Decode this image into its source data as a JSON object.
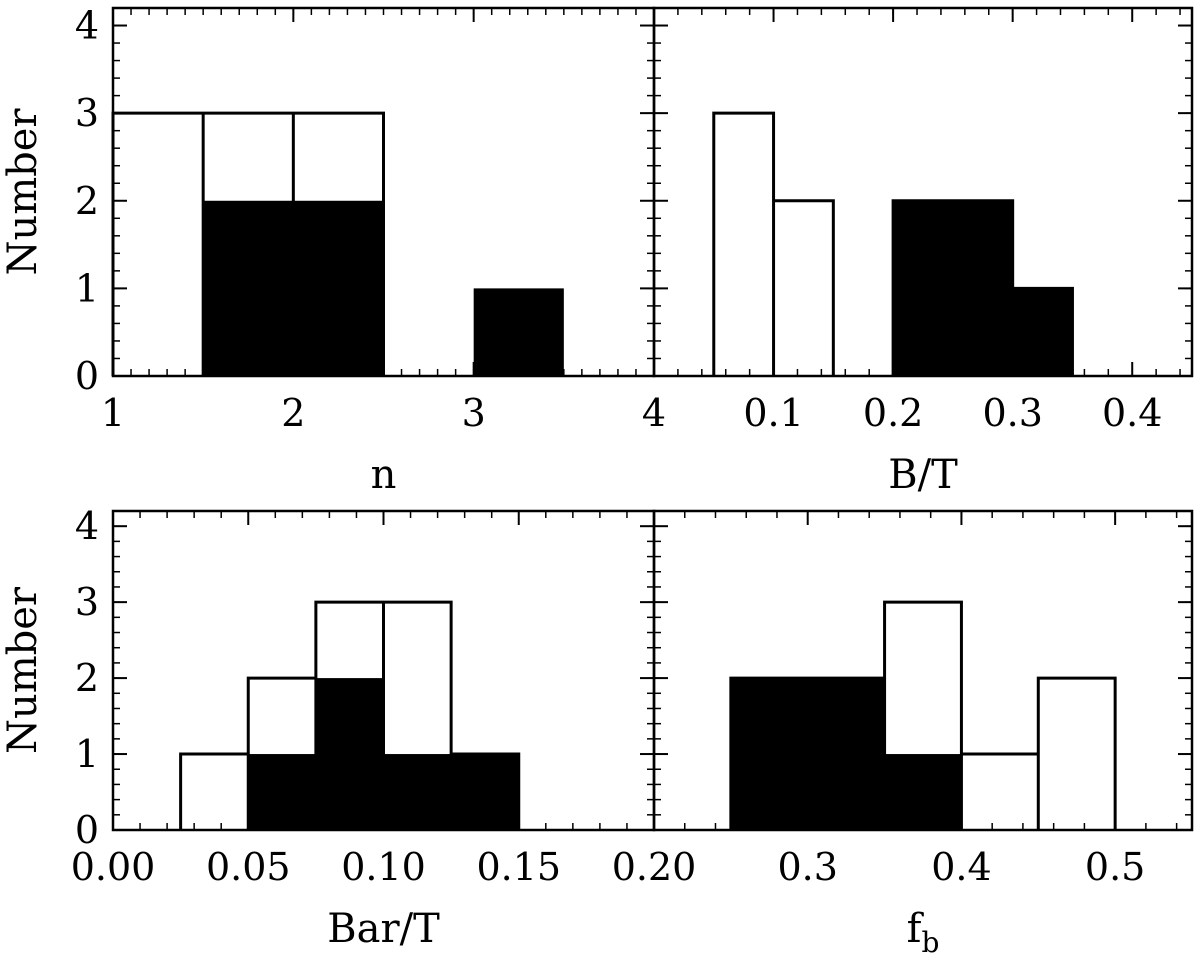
{
  "chart_data": [
    {
      "type": "bar",
      "panel": "n",
      "xlabel": "n",
      "ylabel": "Number",
      "xlim": [
        1,
        4
      ],
      "ylim": [
        0,
        4.2
      ],
      "xticks": [
        "1",
        "2",
        "3",
        "4"
      ],
      "yticks": [
        "0",
        "1",
        "2",
        "3",
        "4"
      ],
      "bin_edges": [
        1.0,
        1.5,
        2.0,
        2.5,
        3.0,
        3.5,
        4.0
      ],
      "series": [
        {
          "style": "open",
          "values": [
            3,
            3,
            3,
            0,
            0,
            0
          ]
        },
        {
          "style": "filled",
          "values": [
            0,
            2,
            2,
            0,
            1,
            0
          ]
        }
      ]
    },
    {
      "type": "bar",
      "panel": "B/T",
      "xlabel": "B/T",
      "ylabel": "",
      "xlim": [
        0.0,
        0.45
      ],
      "ylim": [
        0,
        4.2
      ],
      "xticks": [
        "0.1",
        "0.2",
        "0.3",
        "0.4"
      ],
      "yticks": [],
      "bin_edges": [
        0.0,
        0.05,
        0.1,
        0.15,
        0.2,
        0.25,
        0.3,
        0.35,
        0.4,
        0.45
      ],
      "series": [
        {
          "style": "open",
          "values": [
            0,
            3,
            2,
            0,
            2,
            2,
            1,
            0,
            0
          ]
        },
        {
          "style": "filled",
          "values": [
            0,
            0,
            0,
            0,
            2,
            2,
            1,
            0,
            0
          ]
        }
      ]
    },
    {
      "type": "bar",
      "panel": "Bar/T",
      "xlabel": "Bar/T",
      "ylabel": "Number",
      "xlim": [
        0.0,
        0.2
      ],
      "ylim": [
        0,
        4.2
      ],
      "xticks": [
        "0.00",
        "0.05",
        "0.10",
        "0.15",
        "0.20"
      ],
      "yticks": [
        "0",
        "1",
        "2",
        "3",
        "4"
      ],
      "bin_edges": [
        0.0,
        0.025,
        0.05,
        0.075,
        0.1,
        0.125,
        0.15,
        0.175,
        0.2
      ],
      "series": [
        {
          "style": "open",
          "values": [
            0,
            1,
            2,
            3,
            3,
            1,
            0,
            0
          ]
        },
        {
          "style": "filled",
          "values": [
            0,
            0,
            1,
            2,
            1,
            1,
            0,
            0
          ]
        }
      ]
    },
    {
      "type": "bar",
      "panel": "f_b",
      "xlabel": "f",
      "xlabel_sub": "b",
      "ylabel": "",
      "xlim": [
        0.2,
        0.55
      ],
      "ylim": [
        0,
        4.2
      ],
      "xticks": [
        "0.3",
        "0.4",
        "0.5"
      ],
      "yticks": [],
      "bin_edges": [
        0.2,
        0.25,
        0.3,
        0.35,
        0.4,
        0.45,
        0.5,
        0.55
      ],
      "series": [
        {
          "style": "open",
          "values": [
            0,
            2,
            2,
            3,
            1,
            2,
            0
          ]
        },
        {
          "style": "filled",
          "values": [
            0,
            2,
            2,
            1,
            0,
            0,
            0
          ]
        }
      ]
    }
  ]
}
